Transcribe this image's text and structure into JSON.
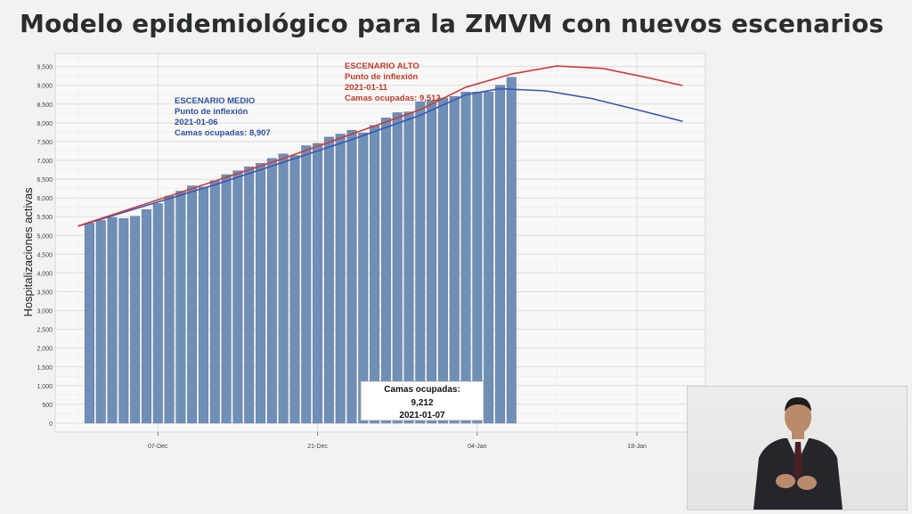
{
  "slide": {
    "title": "Modelo epidemiológico para la ZMVM con nuevos escenarios"
  },
  "chart_data": {
    "type": "bar",
    "ylabel": "Hospitalizaciones activas",
    "xlabel": "",
    "ylim": [
      0,
      9800
    ],
    "yticks": [
      0,
      500,
      1000,
      1500,
      2000,
      2500,
      3000,
      3500,
      4000,
      4500,
      5000,
      5500,
      6000,
      6500,
      7000,
      7500,
      8000,
      8500,
      9000,
      9500
    ],
    "ytick_labels": [
      "0",
      "500",
      "1,000",
      "1,500",
      "2,000",
      "2,500",
      "3,000",
      "3,500",
      "4,000",
      "4,500",
      "5,000",
      "5,500",
      "6,000",
      "6,500",
      "7,000",
      "7,500",
      "8,000",
      "8,500",
      "9,000",
      "9,500"
    ],
    "xlim": [
      "2020-11-28",
      "2021-01-24"
    ],
    "xticks": [
      "2020-12-07",
      "2020-12-21",
      "2021-01-04",
      "2021-01-18"
    ],
    "xtick_labels": [
      "07-Dec",
      "21-Dec",
      "04-Jan",
      "18-Jan"
    ],
    "grid": true,
    "bar_color": "#6f8fb6",
    "bars": {
      "start_date": "2020-12-01",
      "values": [
        5330,
        5400,
        5480,
        5450,
        5510,
        5690,
        5850,
        6050,
        6180,
        6320,
        6290,
        6460,
        6620,
        6720,
        6830,
        6920,
        7050,
        7170,
        7130,
        7390,
        7450,
        7620,
        7700,
        7800,
        7730,
        7930,
        8130,
        8270,
        8290,
        8560,
        8590,
        8660,
        8700,
        8820,
        8820,
        8820,
        9000,
        9212
      ]
    },
    "series": [
      {
        "name": "ESCENARIO MEDIO",
        "color": "#3a55b0",
        "x": [
          "2020-11-30",
          "2020-12-06",
          "2020-12-12",
          "2020-12-18",
          "2020-12-24",
          "2020-12-30",
          "2021-01-03",
          "2021-01-06",
          "2021-01-10",
          "2021-01-14",
          "2021-01-18",
          "2021-01-22"
        ],
        "y": [
          5250,
          5800,
          6350,
          6950,
          7550,
          8200,
          8750,
          8907,
          8850,
          8650,
          8350,
          8040
        ]
      },
      {
        "name": "ESCENARIO ALTO",
        "color": "#cc3b3b",
        "x": [
          "2020-11-30",
          "2020-12-06",
          "2020-12-12",
          "2020-12-18",
          "2020-12-24",
          "2020-12-30",
          "2021-01-03",
          "2021-01-07",
          "2021-01-11",
          "2021-01-15",
          "2021-01-19",
          "2021-01-22"
        ],
        "y": [
          5250,
          5850,
          6450,
          7050,
          7700,
          8350,
          8950,
          9300,
          9512,
          9450,
          9200,
          8990
        ]
      }
    ],
    "annotations": {
      "medio": {
        "lines": [
          "ESCENARIO MEDIO",
          "Punto de inflexión",
          "2021-01-06",
          "Camas ocupadas: 8,907"
        ],
        "color": "#2f4ea0"
      },
      "alto": {
        "lines": [
          "ESCENARIO ALTO",
          "Punto de inflexión",
          "2021-01-11",
          "Camas ocupadas: 9,512"
        ],
        "color": "#c0392b"
      },
      "current": {
        "lines": [
          "Camas ocupadas:",
          "9,212",
          "2021-01-07"
        ]
      }
    }
  }
}
